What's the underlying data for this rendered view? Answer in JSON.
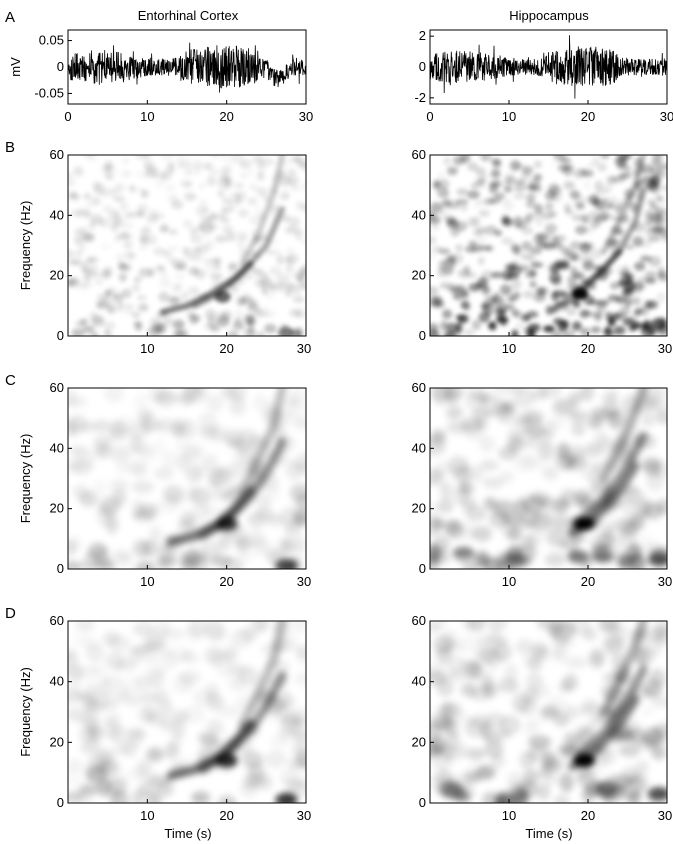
{
  "figure": {
    "column_titles": [
      "Entorhinal Cortex",
      "Hippocampus"
    ],
    "panel_letters": [
      "A",
      "B",
      "C",
      "D"
    ],
    "xlabel": "Time (s)",
    "xticks_trace": [
      "0",
      "10",
      "20",
      "30"
    ],
    "xticks_spec": [
      "10",
      "20",
      "30"
    ]
  },
  "chart_data": [
    {
      "type": "line",
      "panel": "A",
      "title": "Entorhinal Cortex",
      "ylabel": "mV",
      "xlabel": "",
      "xlim": [
        0,
        30
      ],
      "ylim": [
        -0.07,
        0.07
      ],
      "yticks": [
        "0.05",
        "0",
        "-0.05"
      ],
      "description_values": {
        "noise_amplitude_mV": 0.025,
        "max_abs_mV": 0.055
      }
    },
    {
      "type": "line",
      "panel": "A",
      "title": "Hippocampus",
      "ylabel": "",
      "xlabel": "",
      "xlim": [
        0,
        30
      ],
      "ylim": [
        -2.4,
        2.4
      ],
      "yticks": [
        "2",
        "0",
        "-2"
      ],
      "description_values": {
        "noise_amplitude_mV": 0.8,
        "max_abs_mV": 2.1
      }
    },
    {
      "type": "heatmap",
      "panel": "B",
      "region": "Entorhinal Cortex",
      "ylabel": "Frequency (Hz)",
      "xlim": [
        0,
        30
      ],
      "ylim": [
        0,
        60
      ],
      "yticks": [
        "0",
        "20",
        "40",
        "60"
      ],
      "background_noise": 0.12,
      "blob_size": 5,
      "chirps": [
        {
          "x": [
            12,
            15,
            18,
            21,
            23
          ],
          "y": [
            8,
            10,
            14,
            19,
            24
          ],
          "intensity": 0.5
        },
        {
          "x": [
            16,
            19,
            22,
            25,
            27
          ],
          "y": [
            10,
            14,
            21,
            30,
            42
          ],
          "intensity": 0.35
        },
        {
          "x": [
            22,
            24,
            26,
            27
          ],
          "y": [
            24,
            34,
            48,
            60
          ],
          "intensity": 0.2
        }
      ],
      "hotspots": [
        {
          "x": 19.5,
          "y": 13,
          "intensity": 0.6
        },
        {
          "x": 27.5,
          "y": 1,
          "intensity": 0.5
        }
      ]
    },
    {
      "type": "heatmap",
      "panel": "B",
      "region": "Hippocampus",
      "ylabel": "",
      "xlim": [
        0,
        30
      ],
      "ylim": [
        0,
        60
      ],
      "yticks": [
        "0",
        "20",
        "40",
        "60"
      ],
      "background_noise": 0.35,
      "blob_size": 5,
      "chirps": [
        {
          "x": [
            16,
            18,
            20,
            22,
            24
          ],
          "y": [
            10,
            12,
            17,
            22,
            28
          ],
          "intensity": 0.45
        },
        {
          "x": [
            18,
            21,
            24,
            26,
            27
          ],
          "y": [
            14,
            20,
            28,
            38,
            48
          ],
          "intensity": 0.35
        },
        {
          "x": [
            22,
            24,
            26,
            27
          ],
          "y": [
            28,
            38,
            50,
            60
          ],
          "intensity": 0.25
        }
      ],
      "hotspots": [
        {
          "x": 19,
          "y": 14,
          "intensity": 0.95
        },
        {
          "x": 29,
          "y": 4,
          "intensity": 0.6
        }
      ]
    },
    {
      "type": "heatmap",
      "panel": "C",
      "region": "Entorhinal Cortex",
      "ylabel": "Frequency (Hz)",
      "xlim": [
        0,
        30
      ],
      "ylim": [
        0,
        60
      ],
      "yticks": [
        "0",
        "20",
        "40",
        "60"
      ],
      "background_noise": 0.1,
      "blob_size": 9,
      "chirps": [
        {
          "x": [
            13,
            16,
            19,
            21,
            23
          ],
          "y": [
            9,
            11,
            15,
            20,
            26
          ],
          "intensity": 0.55
        },
        {
          "x": [
            17,
            20,
            23,
            25,
            27
          ],
          "y": [
            11,
            16,
            24,
            32,
            42
          ],
          "intensity": 0.4
        },
        {
          "x": [
            22,
            24,
            26,
            27
          ],
          "y": [
            26,
            36,
            48,
            60
          ],
          "intensity": 0.25
        }
      ],
      "hotspots": [
        {
          "x": 20,
          "y": 15,
          "intensity": 0.75
        },
        {
          "x": 27.5,
          "y": 1,
          "intensity": 0.7
        }
      ]
    },
    {
      "type": "heatmap",
      "panel": "C",
      "region": "Hippocampus",
      "ylabel": "",
      "xlim": [
        0,
        30
      ],
      "ylim": [
        0,
        60
      ],
      "yticks": [
        "0",
        "20",
        "40",
        "60"
      ],
      "background_noise": 0.16,
      "blob_size": 9,
      "chirps": [
        {
          "x": [
            18,
            20,
            22,
            24,
            26
          ],
          "y": [
            12,
            15,
            20,
            26,
            34
          ],
          "intensity": 0.45
        },
        {
          "x": [
            19,
            22,
            25,
            27
          ],
          "y": [
            16,
            23,
            34,
            44
          ],
          "intensity": 0.4
        },
        {
          "x": [
            22,
            24,
            26,
            27
          ],
          "y": [
            30,
            40,
            52,
            60
          ],
          "intensity": 0.3
        }
      ],
      "hotspots": [
        {
          "x": 19.5,
          "y": 15,
          "intensity": 1.0
        },
        {
          "x": 29,
          "y": 3,
          "intensity": 0.55
        }
      ]
    },
    {
      "type": "heatmap",
      "panel": "D",
      "region": "Entorhinal Cortex",
      "ylabel": "Frequency (Hz)",
      "xlim": [
        0,
        30
      ],
      "ylim": [
        0,
        60
      ],
      "yticks": [
        "0",
        "20",
        "40",
        "60"
      ],
      "background_noise": 0.1,
      "blob_size": 9,
      "chirps": [
        {
          "x": [
            13,
            16,
            19,
            21,
            23
          ],
          "y": [
            9,
            11,
            15,
            20,
            26
          ],
          "intensity": 0.55
        },
        {
          "x": [
            17,
            20,
            23,
            25,
            27
          ],
          "y": [
            11,
            16,
            24,
            32,
            42
          ],
          "intensity": 0.4
        },
        {
          "x": [
            22,
            24,
            26,
            27
          ],
          "y": [
            26,
            36,
            48,
            60
          ],
          "intensity": 0.25
        }
      ],
      "hotspots": [
        {
          "x": 20,
          "y": 14,
          "intensity": 0.8
        },
        {
          "x": 27.5,
          "y": 1,
          "intensity": 0.75
        }
      ]
    },
    {
      "type": "heatmap",
      "panel": "D",
      "region": "Hippocampus",
      "ylabel": "",
      "xlim": [
        0,
        30
      ],
      "ylim": [
        0,
        60
      ],
      "yticks": [
        "0",
        "20",
        "40",
        "60"
      ],
      "background_noise": 0.16,
      "blob_size": 9,
      "chirps": [
        {
          "x": [
            18,
            20,
            22,
            24,
            26
          ],
          "y": [
            12,
            15,
            20,
            26,
            34
          ],
          "intensity": 0.45
        },
        {
          "x": [
            19,
            22,
            25,
            27
          ],
          "y": [
            16,
            23,
            34,
            44
          ],
          "intensity": 0.4
        },
        {
          "x": [
            22,
            24,
            26,
            27
          ],
          "y": [
            30,
            40,
            52,
            60
          ],
          "intensity": 0.3
        }
      ],
      "hotspots": [
        {
          "x": 19.5,
          "y": 14,
          "intensity": 1.0
        },
        {
          "x": 29,
          "y": 3,
          "intensity": 0.6
        }
      ]
    }
  ]
}
